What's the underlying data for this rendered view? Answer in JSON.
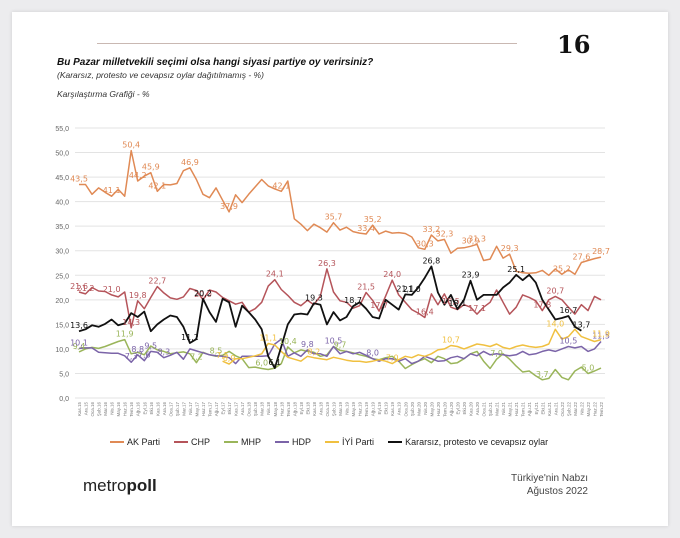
{
  "header": {
    "page_number": "16",
    "title": "Bu Pazar milletvekili seçimi olsa  hangi siyasi partiye oy verirsiniz?",
    "subtitle": "(Kararsız, protesto ve cevapsız oylar dağıtılmamış - %)",
    "caption": "Karşılaştırma Grafiği - %"
  },
  "footer": {
    "logo_light": "metro",
    "logo_bold": "poll",
    "line1": "Türkiye'nin Nabzı",
    "line2": "Ağustos 2022"
  },
  "chart_data": {
    "type": "line",
    "title": "Karşılaştırma Grafiği - %",
    "xlabel": "",
    "ylabel": "%",
    "ylim": [
      0,
      55
    ],
    "yticks": [
      "0,0",
      "5,0",
      "10,0",
      "15,0",
      "20,0",
      "25,0",
      "30,0",
      "35,0",
      "40,0",
      "45,0",
      "50,0",
      "55,0"
    ],
    "grid": true,
    "legend_position": "bottom",
    "x": [
      "Kas.15",
      "Ara.15",
      "Oca.16",
      "Şub.16",
      "Mar.16",
      "Nis.16",
      "May.16",
      "Haz.16",
      "Tem.16",
      "Ağu.16",
      "Eyl.16",
      "Eki.16",
      "Kas.16",
      "Ara.16",
      "Oca.17",
      "Şub.17",
      "Mar.17",
      "Nis.17",
      "May.17",
      "Haz.17",
      "Tem.17",
      "Ağu.17",
      "Eyl.17",
      "Eki.17",
      "Kas.17",
      "Ara.17",
      "Oca.18",
      "Şub.18",
      "Mar.18",
      "Nis.18",
      "May.18",
      "Haz.18",
      "Tem.18",
      "Ağu.18",
      "Eyl.18",
      "Eki.18",
      "Kas.18",
      "Ara.18",
      "Oca.19",
      "Şub.19",
      "Mar.19",
      "Nis.19",
      "May.19",
      "Haz.19",
      "Tem.19",
      "Ağu.19",
      "Eyl.19",
      "Eki.19",
      "Kas.19",
      "Ara.19",
      "Oca.20",
      "Şub.20",
      "Mar.20",
      "Nis.20",
      "May.20",
      "Haz.20",
      "Tem.20",
      "Ağu.20",
      "Eyl.20",
      "Eki.20",
      "Kas.20",
      "Ara.20",
      "Oca.21",
      "Şub.21",
      "Mar.21",
      "Nis.21",
      "May.21",
      "Haz.21",
      "Tem.21",
      "Ağu.21",
      "Eyl.21",
      "Eki.21",
      "Kas.21",
      "Ara.21",
      "Oca.22",
      "Şub.22",
      "Mar.22",
      "Nis.22",
      "May.22",
      "Haz.22",
      "Tem.22"
    ],
    "series": [
      {
        "name": "AK Parti",
        "color": "#e08a55",
        "values": [
          43.5,
          43.5,
          41.5,
          42.8,
          41.9,
          41.1,
          42.5,
          41.1,
          50.4,
          44.2,
          45.2,
          45.9,
          42.1,
          43.5,
          43.4,
          43.7,
          46.3,
          46.9,
          44.5,
          41.5,
          40.8,
          42.8,
          40.3,
          37.9,
          41.4,
          39.8,
          41.5,
          43.0,
          44.5,
          43.2,
          42.6,
          42.1,
          44.2,
          36.5,
          35.4,
          34.1,
          35.4,
          34.7,
          33.8,
          35.7,
          34.2,
          34.8,
          33.9,
          33.6,
          33.4,
          35.2,
          33.4,
          34.0,
          33.6,
          33.7,
          33.5,
          32.8,
          30.6,
          30.3,
          33.2,
          32.0,
          32.3,
          29.5,
          30.5,
          30.6,
          30.9,
          31.3,
          28.0,
          28.3,
          30.9,
          28.5,
          29.3,
          25.8,
          25.5,
          25.4,
          25.5,
          26.0,
          25.0,
          26.3,
          25.2,
          26.1,
          25.2,
          27.6,
          28.0,
          28.4,
          28.7
        ]
      },
      {
        "name": "CHP",
        "color": "#b5545a",
        "values": [
          21.6,
          21.2,
          22.5,
          21.8,
          21.7,
          21.0,
          20.6,
          21.6,
          14.3,
          19.8,
          18.2,
          20.5,
          22.7,
          21.4,
          20.4,
          20.1,
          20.6,
          22.3,
          21.9,
          20.0,
          22.0,
          21.6,
          20.5,
          19.8,
          19.1,
          19.5,
          17.5,
          18.2,
          19.5,
          22.8,
          24.1,
          22.1,
          20.9,
          19.5,
          18.8,
          19.9,
          19.0,
          20.8,
          26.3,
          21.6,
          19.8,
          19.5,
          18.3,
          18.8,
          21.5,
          19.9,
          17.7,
          20.8,
          24.0,
          21.0,
          19.5,
          18.0,
          17.3,
          16.4,
          21.2,
          19.0,
          21.2,
          18.5,
          18.0,
          19.0,
          18.5,
          17.1,
          18.5,
          19.5,
          22.0,
          19.5,
          17.1,
          18.5,
          21.0,
          20.5,
          19.8,
          17.8,
          20.0,
          20.7,
          20.0,
          18.5,
          17.1,
          19.0,
          17.8,
          20.7,
          20.0
        ]
      },
      {
        "name": "MHP",
        "color": "#9ab55a",
        "values": [
          9.4,
          10.0,
          10.3,
          10.1,
          10.5,
          11.0,
          11.5,
          11.9,
          9.0,
          9.3,
          8.8,
          10.6,
          9.8,
          9.5,
          9.0,
          9.2,
          9.4,
          9.0,
          7.2,
          9.3,
          8.8,
          8.5,
          8.7,
          9.5,
          8.6,
          8.0,
          6.2,
          6.3,
          6.0,
          5.8,
          6.1,
          7.0,
          10.4,
          9.2,
          9.8,
          9.5,
          9.3,
          8.5,
          8.8,
          10.5,
          9.7,
          9.5,
          9.2,
          8.8,
          8.5,
          8.0,
          7.8,
          8.2,
          8.5,
          7.5,
          6.0,
          6.8,
          7.5,
          8.0,
          7.2,
          8.5,
          8.0,
          7.0,
          7.2,
          8.0,
          9.0,
          9.5,
          7.5,
          6.0,
          7.9,
          9.0,
          7.9,
          6.5,
          5.3,
          5.5,
          4.5,
          3.7,
          4.0,
          5.8,
          4.2,
          3.7,
          5.5,
          6.3,
          5.0,
          5.5,
          6.1
        ]
      },
      {
        "name": "HDP",
        "color": "#7b64a8",
        "values": [
          10.1,
          10.2,
          10.2,
          9.3,
          9.2,
          9.1,
          9.1,
          8.6,
          7.3,
          8.8,
          7.6,
          9.5,
          9.3,
          8.2,
          8.7,
          9.3,
          7.9,
          10.0,
          9.6,
          9.2,
          8.8,
          8.6,
          8.5,
          8.2,
          7.0,
          8.5,
          8.5,
          8.5,
          8.5,
          8.6,
          11.0,
          12.0,
          8.5,
          9.2,
          8.5,
          9.8,
          9.0,
          9.0,
          8.5,
          10.5,
          9.0,
          9.5,
          9.0,
          9.3,
          8.7,
          8.0,
          7.5,
          8.0,
          8.0,
          7.5,
          8.0,
          7.0,
          7.5,
          8.5,
          8.0,
          7.5,
          7.6,
          8.2,
          8.5,
          8.0,
          9.0,
          8.6,
          9.5,
          8.8,
          9.0,
          8.8,
          8.6,
          8.8,
          9.5,
          8.8,
          9.0,
          9.5,
          9.8,
          9.5,
          10.0,
          10.5,
          10.2,
          10.5,
          9.5,
          10.0,
          11.5
        ]
      },
      {
        "name": "İYİ Parti",
        "color": "#f0c040",
        "values": [
          null,
          null,
          null,
          null,
          null,
          null,
          null,
          null,
          null,
          null,
          null,
          null,
          null,
          null,
          null,
          null,
          null,
          null,
          null,
          null,
          null,
          null,
          7.5,
          6.9,
          8.0,
          8.0,
          8.3,
          8.6,
          9.0,
          11.1,
          10.8,
          9.5,
          8.3,
          7.9,
          7.5,
          8.5,
          8.2,
          8.0,
          7.8,
          8.3,
          8.0,
          7.7,
          7.5,
          7.5,
          7.3,
          7.5,
          7.8,
          7.5,
          7.0,
          7.8,
          8.5,
          8.2,
          8.8,
          8.5,
          9.0,
          9.8,
          10.0,
          10.7,
          10.5,
          10.0,
          10.5,
          11.0,
          10.8,
          10.5,
          11.0,
          10.3,
          10.0,
          10.5,
          10.8,
          10.5,
          10.3,
          10.5,
          11.0,
          14.0,
          12.0,
          12.5,
          14.0,
          12.5,
          12.0,
          11.5,
          11.9
        ]
      },
      {
        "name": "Kararsız, protesto ve cevapsız oylar",
        "color": "#111111",
        "values": [
          13.6,
          14.0,
          14.8,
          14.5,
          15.1,
          16.0,
          14.8,
          15.2,
          17.3,
          16.5,
          17.6,
          13.6,
          15.0,
          16.0,
          16.8,
          16.5,
          14.5,
          11.2,
          12.0,
          20.2,
          17.5,
          15.5,
          20.2,
          19.5,
          14.5,
          18.8,
          17.5,
          16.0,
          14.0,
          8.5,
          6.1,
          10.5,
          15.0,
          17.0,
          17.2,
          17.0,
          19.3,
          19.0,
          15.0,
          17.5,
          15.8,
          16.5,
          18.7,
          19.5,
          18.2,
          16.5,
          16.2,
          20.0,
          19.0,
          18.0,
          21.1,
          21.0,
          22.5,
          24.5,
          26.8,
          21.5,
          19.0,
          21.0,
          18.1,
          20.0,
          23.9,
          20.0,
          21.0,
          21.0,
          21.0,
          22.5,
          23.5,
          25.1,
          24.0,
          25.1,
          23.5,
          20.0,
          18.0,
          16.0,
          16.3,
          16.7,
          14.5,
          13.7,
          null,
          null,
          null
        ]
      }
    ],
    "annotations": [
      {
        "series": "AK Parti",
        "labels": [
          "43,5",
          "41,1",
          "50,4",
          "45,9",
          "42,1",
          "46,9",
          "37,9",
          "44,2",
          "42,1",
          "35,7",
          "35,2",
          "33,4",
          "30,3",
          "33,2",
          "32,3",
          "31,3",
          "30,9",
          "29,3",
          "25,2",
          "27,6",
          "28,7"
        ]
      },
      {
        "series": "CHP",
        "labels": [
          "21,6",
          "14,3",
          "22,7",
          "24,1",
          "26,3",
          "21,5",
          "17,7",
          "24,0",
          "16,4",
          "21,2",
          "18,5",
          "17,1",
          "21,0",
          "19,8",
          "17,8",
          "20,7",
          "20,0"
        ]
      },
      {
        "series": "MHP",
        "labels": [
          "9,4",
          "11,9",
          "7,2",
          "10,4",
          "9,7",
          "8,5",
          "6,0",
          "7,9",
          "3,7",
          "5,0",
          "6,1"
        ]
      },
      {
        "series": "HDP",
        "labels": [
          "10,1",
          "7,3",
          "8,3",
          "9,8",
          "10,5",
          "8,0",
          "7,6",
          "8,8",
          "10,5",
          "9,5",
          "11,5"
        ]
      },
      {
        "series": "İYİ Parti",
        "labels": [
          "6,9",
          "11,1",
          "7,5",
          "7,0",
          "8,2",
          "10,7",
          "14,0",
          "11,9"
        ]
      },
      {
        "series": "Kararsız, protesto ve cevapsız oylar",
        "labels": [
          "13,6",
          "11,2",
          "20,2",
          "6,1",
          "19,3",
          "18,7",
          "21,1",
          "26,8",
          "18,1",
          "23,9",
          "21,0",
          "25,1",
          "16,7",
          "13,7"
        ]
      }
    ]
  }
}
